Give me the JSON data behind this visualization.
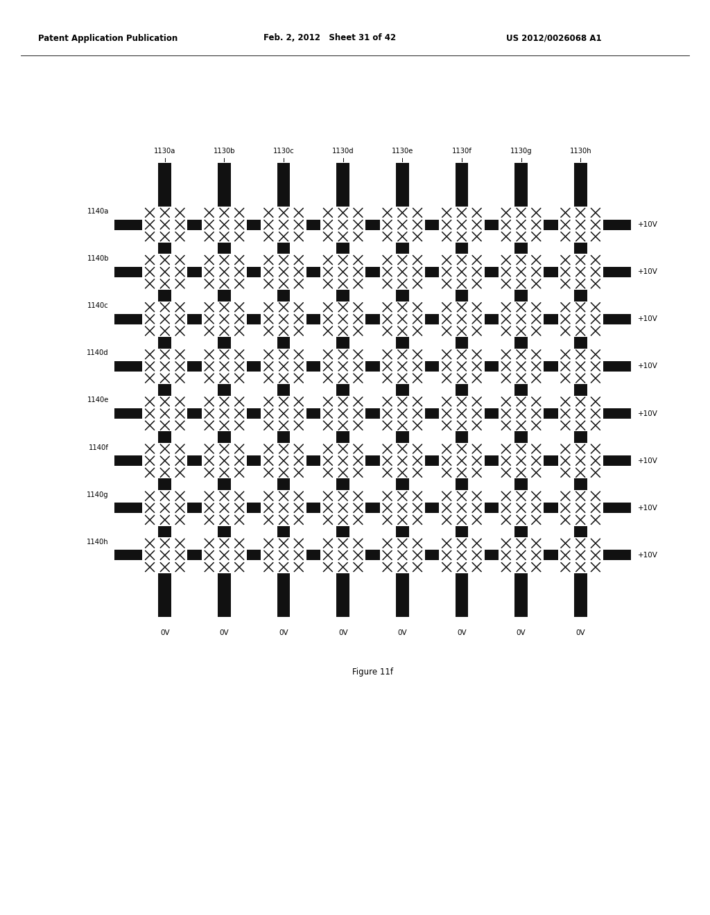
{
  "header_left": "Patent Application Publication",
  "header_center": "Feb. 2, 2012   Sheet 31 of 42",
  "header_right": "US 2012/0026068 A1",
  "figure_label": "Figure 11f",
  "background_color": "#ffffff",
  "bar_color": "#111111",
  "cell_pattern_color": "#111111",
  "num_cols": 8,
  "num_rows": 8,
  "col_labels": [
    "1130a",
    "1130b",
    "1130c",
    "1130d",
    "1130e",
    "1130f",
    "1130g",
    "1130h"
  ],
  "row_labels": [
    "1140a",
    "1140b",
    "1140c",
    "1140d",
    "1140e",
    "1140f",
    "1140g",
    "1140h"
  ],
  "row_voltages": [
    "+10V",
    "+10V",
    "+10V",
    "+10V",
    "+10V",
    "+10V",
    "+10V",
    "+10V"
  ],
  "col_voltages": [
    "0V",
    "0V",
    "0V",
    "0V",
    "0V",
    "0V",
    "0V",
    "0V"
  ]
}
